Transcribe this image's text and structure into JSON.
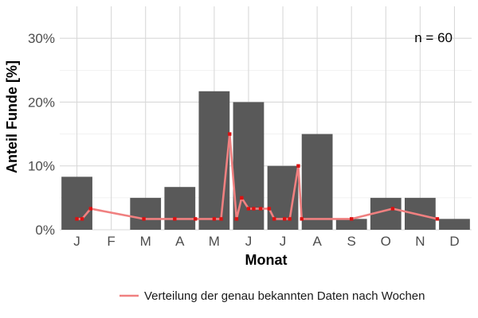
{
  "chart_data": {
    "type": "bar",
    "xlabel": "Monat",
    "ylabel": "Anteil Funde [%]",
    "ylim": [
      0,
      0.35
    ],
    "yticks": [
      0,
      0.1,
      0.2,
      0.3
    ],
    "ytick_labels": [
      "0%",
      "10%",
      "20%",
      "30%"
    ],
    "categories": [
      "J",
      "F",
      "M",
      "A",
      "M",
      "J",
      "J",
      "A",
      "S",
      "O",
      "N",
      "D"
    ],
    "values": [
      0.083,
      0.0,
      0.05,
      0.067,
      0.217,
      0.2,
      0.1,
      0.15,
      0.017,
      0.05,
      0.05,
      0.017
    ],
    "grid": true,
    "annotation": "n = 60",
    "legend_position": "bottom",
    "colors": {
      "bar": "#595959",
      "line": "#f08080",
      "point": "#dd1111",
      "grid": "#d9d9d9"
    },
    "series": [
      {
        "type": "line",
        "name": "Verteilung der genau bekannten Daten nach Wochen",
        "x": [
          0.0,
          0.15,
          0.4,
          1.95,
          2.85,
          3.45,
          4.0,
          4.2,
          4.45,
          4.65,
          4.8,
          5.0,
          5.15,
          5.35,
          5.6,
          5.75,
          6.05,
          6.2,
          6.45,
          6.55,
          8.0,
          9.2,
          10.5
        ],
        "y": [
          0.017,
          0.017,
          0.033,
          0.017,
          0.017,
          0.017,
          0.017,
          0.017,
          0.15,
          0.017,
          0.05,
          0.033,
          0.033,
          0.033,
          0.033,
          0.017,
          0.017,
          0.017,
          0.1,
          0.017,
          0.017,
          0.033,
          0.017
        ]
      }
    ]
  }
}
